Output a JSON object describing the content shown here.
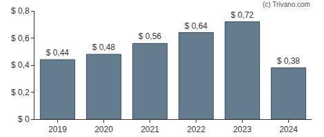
{
  "chart_data": {
    "type": "bar",
    "categories": [
      "2019",
      "2020",
      "2021",
      "2022",
      "2023",
      "2024"
    ],
    "values": [
      0.44,
      0.48,
      0.56,
      0.64,
      0.72,
      0.38
    ],
    "value_labels": [
      "$ 0,44",
      "$ 0,48",
      "$ 0,56",
      "$ 0,64",
      "$ 0,72",
      "$ 0,38"
    ],
    "data_labels": true,
    "color": "#647d8e",
    "ylim": [
      0,
      0.8
    ],
    "yticks": [
      {
        "value": 0,
        "label": "$ 0"
      },
      {
        "value": 0.2,
        "label": "$ 0,2"
      },
      {
        "value": 0.4,
        "label": "$ 0,4"
      },
      {
        "value": 0.6,
        "label": "$ 0,6"
      },
      {
        "value": 0.8,
        "label": "$ 0,8"
      }
    ],
    "grid": false,
    "annotations": [
      "(c) Trivano.com"
    ]
  }
}
